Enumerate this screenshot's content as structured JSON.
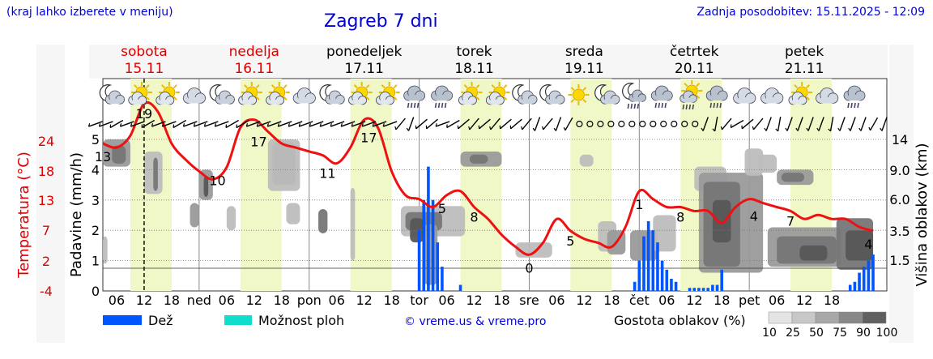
{
  "header": {
    "hint": "(kraj lahko izberete v meniju)",
    "title": "Zagreb 7 dni",
    "updated": "Zadnja posodobitev: 15.11.2025 - 12:09"
  },
  "colors": {
    "weekend_day": "#e00000",
    "weekday": "#000000",
    "temperature": "#ee1111",
    "rain": "#0055ff",
    "storm": "#11ddcc",
    "daylight": "#f0f8c8"
  },
  "chart_data": {
    "type": "area",
    "days": [
      {
        "name": "sobota",
        "date": "15.11",
        "weekend": true,
        "short": ""
      },
      {
        "name": "nedelja",
        "date": "16.11",
        "weekend": true,
        "short": "ned"
      },
      {
        "name": "ponedeljek",
        "date": "17.11",
        "weekend": false,
        "short": "pon"
      },
      {
        "name": "torek",
        "date": "18.11",
        "weekend": false,
        "short": "tor"
      },
      {
        "name": "sreda",
        "date": "19.11",
        "weekend": false,
        "short": "sre"
      },
      {
        "name": "četrtek",
        "date": "20.11",
        "weekend": false,
        "short": "čet"
      },
      {
        "name": "petek",
        "date": "21.11",
        "weekend": false,
        "short": "pet"
      }
    ],
    "hour_ticks": [
      "06",
      "12",
      "18"
    ],
    "left_axis": {
      "label": "Padavine (mm/h)",
      "ticks": [
        "0",
        "1",
        "2",
        "3",
        "4",
        "5"
      ],
      "range": [
        0,
        5
      ]
    },
    "temp_axis": {
      "label": "Temperatura (°C)",
      "ticks": [
        "-4",
        "2",
        "7",
        "13",
        "18",
        "24"
      ]
    },
    "right_axis": {
      "label": "Višina oblakov (km)",
      "ticks": [
        "1.5",
        "3.5",
        "6.0",
        "9.0",
        "14"
      ]
    },
    "start_hour": 3,
    "now_hour": 12,
    "temperature": {
      "hours": [
        3,
        6,
        9,
        12,
        15,
        18,
        21,
        24,
        27,
        30,
        33,
        36,
        39,
        42,
        45,
        48,
        51,
        54,
        57,
        60,
        63,
        66,
        69,
        72,
        75,
        78,
        81,
        84,
        87,
        90,
        93,
        96,
        99,
        102,
        105,
        108,
        111,
        114,
        117,
        120,
        123,
        126,
        129,
        132,
        135,
        138,
        141,
        144,
        147,
        150,
        153,
        156,
        159,
        162,
        165,
        168,
        171
      ],
      "values": [
        14.5,
        14.0,
        15.5,
        19.5,
        18.5,
        14.5,
        12.5,
        11.0,
        10.0,
        11.5,
        16.5,
        17.5,
        16.0,
        14.5,
        14.0,
        13.5,
        13.0,
        12.0,
        14.0,
        17.5,
        16.5,
        11.0,
        8.0,
        7.5,
        6.5,
        8.0,
        8.5,
        6.5,
        5.0,
        3.0,
        1.5,
        0.5,
        2.0,
        5.0,
        3.5,
        2.5,
        2.0,
        1.5,
        4.0,
        8.5,
        7.5,
        6.5,
        6.5,
        6.0,
        6.0,
        4.5,
        6.5,
        7.5,
        7.0,
        6.5,
        6.0,
        5.0,
        5.5,
        5.0,
        5.0,
        4.0,
        3.5
      ],
      "labels": [
        {
          "hour": 3,
          "text": "13"
        },
        {
          "hour": 12,
          "text": "19"
        },
        {
          "hour": 28,
          "text": "10"
        },
        {
          "hour": 37,
          "text": "17"
        },
        {
          "hour": 52,
          "text": "11"
        },
        {
          "hour": 61,
          "text": "17"
        },
        {
          "hour": 77,
          "text": "5"
        },
        {
          "hour": 84,
          "text": "8"
        },
        {
          "hour": 96,
          "text": "0"
        },
        {
          "hour": 105,
          "text": "5"
        },
        {
          "hour": 120,
          "text": "1"
        },
        {
          "hour": 129,
          "text": "8"
        },
        {
          "hour": 145,
          "text": "4"
        },
        {
          "hour": 153,
          "text": "7"
        },
        {
          "hour": 170,
          "text": "4"
        }
      ]
    },
    "rain": [
      {
        "hour": 72,
        "mm": 2.0
      },
      {
        "hour": 73,
        "mm": 3.0
      },
      {
        "hour": 74,
        "mm": 4.1
      },
      {
        "hour": 75,
        "mm": 3.0
      },
      {
        "hour": 76,
        "mm": 1.6
      },
      {
        "hour": 77,
        "mm": 0.8
      },
      {
        "hour": 81,
        "mm": 0.2
      },
      {
        "hour": 119,
        "mm": 0.3
      },
      {
        "hour": 120,
        "mm": 1.0
      },
      {
        "hour": 121,
        "mm": 1.8
      },
      {
        "hour": 122,
        "mm": 2.3
      },
      {
        "hour": 123,
        "mm": 2.0
      },
      {
        "hour": 124,
        "mm": 1.6
      },
      {
        "hour": 125,
        "mm": 1.0
      },
      {
        "hour": 126,
        "mm": 0.7
      },
      {
        "hour": 127,
        "mm": 0.4
      },
      {
        "hour": 128,
        "mm": 0.3
      },
      {
        "hour": 131,
        "mm": 0.1
      },
      {
        "hour": 132,
        "mm": 0.1
      },
      {
        "hour": 133,
        "mm": 0.1
      },
      {
        "hour": 134,
        "mm": 0.1
      },
      {
        "hour": 135,
        "mm": 0.1
      },
      {
        "hour": 136,
        "mm": 0.2
      },
      {
        "hour": 137,
        "mm": 0.2
      },
      {
        "hour": 138,
        "mm": 0.7
      },
      {
        "hour": 166,
        "mm": 0.2
      },
      {
        "hour": 167,
        "mm": 0.3
      },
      {
        "hour": 168,
        "mm": 0.6
      },
      {
        "hour": 169,
        "mm": 0.8
      },
      {
        "hour": 170,
        "mm": 1.0
      },
      {
        "hour": 171,
        "mm": 1.2
      }
    ],
    "clouds": [
      {
        "h0": 3,
        "h1": 9,
        "top": 5.0,
        "bot": 4.1,
        "lvl": 50
      },
      {
        "h0": 5,
        "h1": 8,
        "top": 4.8,
        "bot": 4.2,
        "lvl": 75
      },
      {
        "h0": 12,
        "h1": 16,
        "top": 4.6,
        "bot": 3.2,
        "lvl": 25
      },
      {
        "h0": 14,
        "h1": 15,
        "top": 4.4,
        "bot": 3.3,
        "lvl": 75
      },
      {
        "h0": 3,
        "h1": 4,
        "top": 1.8,
        "bot": 0.9,
        "lvl": 25
      },
      {
        "h0": 24,
        "h1": 27,
        "top": 4.0,
        "bot": 3.0,
        "lvl": 50
      },
      {
        "h0": 25,
        "h1": 26,
        "top": 3.8,
        "bot": 3.1,
        "lvl": 90
      },
      {
        "h0": 22,
        "h1": 24,
        "top": 2.9,
        "bot": 2.1,
        "lvl": 50
      },
      {
        "h0": 30,
        "h1": 32,
        "top": 2.8,
        "bot": 2.0,
        "lvl": 25
      },
      {
        "h0": 40,
        "h1": 45,
        "top": 4.9,
        "bot": 3.5,
        "lvl": 75
      },
      {
        "h0": 39,
        "h1": 46,
        "top": 5.0,
        "bot": 3.3,
        "lvl": 25
      },
      {
        "h0": 43,
        "h1": 46,
        "top": 2.9,
        "bot": 2.2,
        "lvl": 25
      },
      {
        "h0": 50,
        "h1": 52,
        "top": 2.7,
        "bot": 1.9,
        "lvl": 75
      },
      {
        "h0": 57,
        "h1": 58,
        "top": 3.4,
        "bot": 1.0,
        "lvl": 25
      },
      {
        "h0": 68,
        "h1": 82,
        "top": 2.8,
        "bot": 1.8,
        "lvl": 25
      },
      {
        "h0": 69,
        "h1": 77,
        "top": 2.6,
        "bot": 2.0,
        "lvl": 75
      },
      {
        "h0": 70,
        "h1": 73,
        "top": 2.4,
        "bot": 1.6,
        "lvl": 90
      },
      {
        "h0": 73,
        "h1": 76,
        "top": 2.2,
        "bot": 0.2,
        "lvl": 50
      },
      {
        "h0": 81,
        "h1": 90,
        "top": 4.6,
        "bot": 4.1,
        "lvl": 50
      },
      {
        "h0": 83,
        "h1": 87,
        "top": 4.5,
        "bot": 4.2,
        "lvl": 75
      },
      {
        "h0": 93,
        "h1": 101,
        "top": 1.6,
        "bot": 1.1,
        "lvl": 25
      },
      {
        "h0": 107,
        "h1": 110,
        "top": 4.5,
        "bot": 4.1,
        "lvl": 25
      },
      {
        "h0": 111,
        "h1": 115,
        "top": 2.3,
        "bot": 1.3,
        "lvl": 25
      },
      {
        "h0": 113,
        "h1": 117,
        "top": 2.0,
        "bot": 1.2,
        "lvl": 50
      },
      {
        "h0": 118,
        "h1": 124,
        "top": 2.0,
        "bot": 1.0,
        "lvl": 50
      },
      {
        "h0": 123,
        "h1": 128,
        "top": 2.5,
        "bot": 1.3,
        "lvl": 25
      },
      {
        "h0": 132,
        "h1": 139,
        "top": 4.1,
        "bot": 3.3,
        "lvl": 25
      },
      {
        "h0": 133,
        "h1": 147,
        "top": 3.9,
        "bot": 0.6,
        "lvl": 50
      },
      {
        "h0": 134,
        "h1": 142,
        "top": 3.6,
        "bot": 0.8,
        "lvl": 75
      },
      {
        "h0": 136,
        "h1": 140,
        "top": 3.0,
        "bot": 1.6,
        "lvl": 90
      },
      {
        "h0": 143,
        "h1": 147,
        "top": 4.7,
        "bot": 3.8,
        "lvl": 25
      },
      {
        "h0": 146,
        "h1": 150,
        "top": 4.5,
        "bot": 3.9,
        "lvl": 25
      },
      {
        "h0": 150,
        "h1": 158,
        "top": 4.0,
        "bot": 3.5,
        "lvl": 50
      },
      {
        "h0": 151,
        "h1": 156,
        "top": 3.9,
        "bot": 3.6,
        "lvl": 75
      },
      {
        "h0": 148,
        "h1": 164,
        "top": 2.1,
        "bot": 0.8,
        "lvl": 50
      },
      {
        "h0": 150,
        "h1": 163,
        "top": 1.8,
        "bot": 0.9,
        "lvl": 75
      },
      {
        "h0": 155,
        "h1": 161,
        "top": 1.5,
        "bot": 1.0,
        "lvl": 90
      },
      {
        "h0": 163,
        "h1": 171,
        "top": 2.4,
        "bot": 0.7,
        "lvl": 75
      },
      {
        "h0": 165,
        "h1": 171,
        "top": 2.0,
        "bot": 1.0,
        "lvl": 90
      }
    ],
    "symbols": [
      {
        "hour": 3,
        "icon": "moon-cloud-icon"
      },
      {
        "hour": 9,
        "icon": "sun-cloud-icon"
      },
      {
        "hour": 15,
        "icon": "sun-cloud-icon"
      },
      {
        "hour": 21,
        "icon": "cloud-icon"
      },
      {
        "hour": 27,
        "icon": "moon-cloud-icon"
      },
      {
        "hour": 33,
        "icon": "sun-cloud-icon"
      },
      {
        "hour": 39,
        "icon": "sun-cloud-icon"
      },
      {
        "hour": 45,
        "icon": "cloud-icon"
      },
      {
        "hour": 51,
        "icon": "moon-cloud-icon"
      },
      {
        "hour": 57,
        "icon": "sun-cloud-icon"
      },
      {
        "hour": 63,
        "icon": "sun-cloud-icon"
      },
      {
        "hour": 69,
        "icon": "rain-cloud-icon"
      },
      {
        "hour": 75,
        "icon": "rain-cloud-icon"
      },
      {
        "hour": 81,
        "icon": "sun-cloud-icon"
      },
      {
        "hour": 87,
        "icon": "sun-cloud-icon"
      },
      {
        "hour": 93,
        "icon": "moon-cloud-icon"
      },
      {
        "hour": 99,
        "icon": "moon-cloud-icon"
      },
      {
        "hour": 105,
        "icon": "sun-icon"
      },
      {
        "hour": 111,
        "icon": "moon-cloud-icon"
      },
      {
        "hour": 117,
        "icon": "moon-rain-icon"
      },
      {
        "hour": 123,
        "icon": "rain-cloud-icon"
      },
      {
        "hour": 129,
        "icon": "sun-rain-icon"
      },
      {
        "hour": 135,
        "icon": "rain-cloud-icon"
      },
      {
        "hour": 141,
        "icon": "cloud-icon"
      },
      {
        "hour": 147,
        "icon": "cloud-icon"
      },
      {
        "hour": 153,
        "icon": "sun-cloud-icon"
      },
      {
        "hour": 159,
        "icon": "cloud-icon"
      },
      {
        "hour": 165,
        "icon": "rain-cloud-icon"
      }
    ],
    "wind_dirs": [
      250,
      250,
      240,
      250,
      250,
      240,
      250,
      250,
      240,
      250,
      250,
      250,
      250,
      240,
      240,
      250,
      250,
      250,
      250,
      250,
      250,
      250,
      250,
      250,
      250,
      250,
      250,
      250,
      250,
      220,
      200,
      230,
      230,
      250,
      240,
      230,
      220,
      230,
      220,
      230,
      230,
      220,
      200,
      220,
      200,
      210,
      0,
      0,
      0,
      0,
      0,
      0,
      0,
      0,
      0,
      0,
      0,
      0,
      200,
      190,
      220,
      240,
      230,
      220,
      200,
      190,
      200,
      200,
      200,
      200,
      190,
      200,
      200,
      200,
      210,
      200
    ],
    "legend": {
      "rain": "Dež",
      "storm": "Možnost ploh",
      "credit": "© vreme.us & vreme.pro",
      "density_label": "Gostota oblakov (%)",
      "density_levels": [
        "10",
        "25",
        "50",
        "75",
        "90",
        "100"
      ]
    }
  }
}
